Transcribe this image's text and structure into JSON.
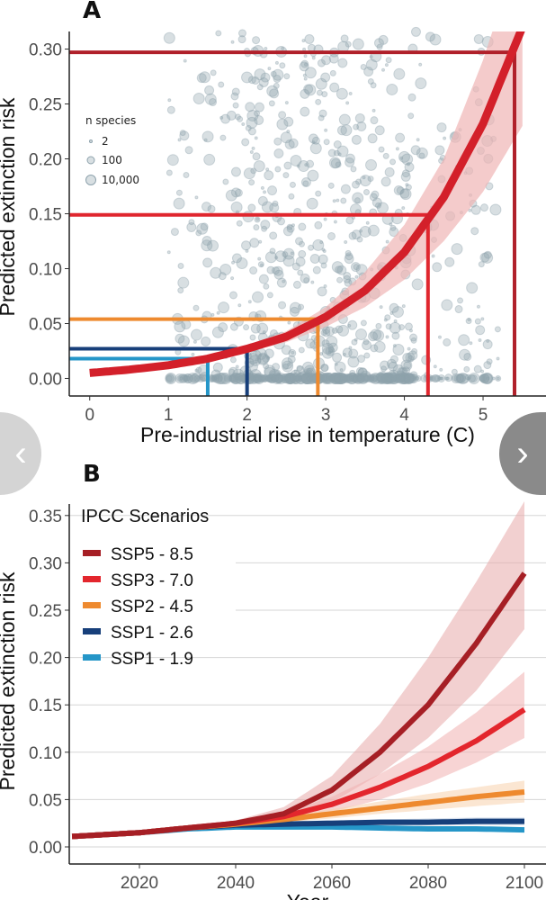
{
  "chart_data": [
    {
      "type": "scatter",
      "panel_label": "A",
      "xlabel": "Pre-industrial rise in temperature (C)",
      "ylabel": "Predicted extinction risk",
      "xlim": [
        -0.26,
        5.8
      ],
      "ylim": [
        -0.016,
        0.316
      ],
      "xticks": [
        "0",
        "1",
        "2",
        "3",
        "4",
        "5"
      ],
      "yticks": [
        "0.00",
        "0.05",
        "0.10",
        "0.15",
        "0.20",
        "0.25",
        "0.30"
      ],
      "grid": false,
      "legend": {
        "title": "n species",
        "entries": [
          "2",
          "100",
          "10,000"
        ],
        "placement": "top-left"
      },
      "points_color": "#8fa3ad",
      "fit_curve": {
        "color": "#d3202a",
        "band_color": "#f0b5b5",
        "x": [
          0,
          0.5,
          1,
          1.5,
          2,
          2.5,
          3,
          3.5,
          4,
          4.5,
          5,
          5.5
        ],
        "y": [
          0.005,
          0.008,
          0.012,
          0.018,
          0.027,
          0.038,
          0.056,
          0.08,
          0.115,
          0.165,
          0.232,
          0.32
        ],
        "lower": [
          0.004,
          0.007,
          0.011,
          0.016,
          0.024,
          0.033,
          0.047,
          0.065,
          0.09,
          0.125,
          0.17,
          0.23
        ],
        "upper": [
          0.006,
          0.009,
          0.013,
          0.02,
          0.03,
          0.043,
          0.065,
          0.097,
          0.14,
          0.2,
          0.29,
          0.4
        ]
      },
      "reference_lines": [
        {
          "temp": 5.4,
          "risk": 0.297,
          "color": "#b0202a"
        },
        {
          "temp": 4.3,
          "risk": 0.149,
          "color": "#e0262e"
        },
        {
          "temp": 2.9,
          "risk": 0.054,
          "color": "#ee8a2f"
        },
        {
          "temp": 2.0,
          "risk": 0.027,
          "color": "#173f7a"
        },
        {
          "temp": 1.5,
          "risk": 0.018,
          "color": "#2596c8"
        }
      ]
    },
    {
      "type": "line",
      "panel_label": "B",
      "xlabel": "Year",
      "ylabel": "Predicted extinction risk",
      "xlim": [
        2005.4,
        2104.5
      ],
      "ylim": [
        -0.018,
        0.365
      ],
      "xticks": [
        "2020",
        "2040",
        "2060",
        "2080",
        "2100"
      ],
      "yticks": [
        "0.00",
        "0.05",
        "0.10",
        "0.15",
        "0.20",
        "0.25",
        "0.30",
        "0.35"
      ],
      "grid": "horizontal",
      "legend": {
        "title": "IPCC Scenarios",
        "placement": "top-left"
      },
      "x": [
        2006,
        2020,
        2030,
        2040,
        2050,
        2060,
        2070,
        2080,
        2090,
        2100
      ],
      "series": [
        {
          "name": "SSP5 - 8.5",
          "color": "#a61f25",
          "band": "#e8a9a9",
          "values": [
            0.011,
            0.015,
            0.02,
            0.025,
            0.035,
            0.06,
            0.1,
            0.15,
            0.215,
            0.289
          ],
          "lower": [
            0.011,
            0.015,
            0.019,
            0.023,
            0.03,
            0.047,
            0.077,
            0.115,
            0.165,
            0.23
          ],
          "upper": [
            0.011,
            0.015,
            0.021,
            0.028,
            0.042,
            0.075,
            0.13,
            0.2,
            0.28,
            0.365
          ]
        },
        {
          "name": "SSP3 - 7.0",
          "color": "#e3262d",
          "band": "#f0b0b0",
          "values": [
            0.011,
            0.015,
            0.02,
            0.025,
            0.032,
            0.045,
            0.063,
            0.085,
            0.112,
            0.145
          ],
          "lower": [
            0.011,
            0.015,
            0.019,
            0.023,
            0.028,
            0.037,
            0.05,
            0.067,
            0.089,
            0.115
          ],
          "upper": [
            0.011,
            0.015,
            0.021,
            0.027,
            0.036,
            0.053,
            0.077,
            0.106,
            0.142,
            0.185
          ]
        },
        {
          "name": "SSP2 - 4.5",
          "color": "#ee8a2f",
          "band": "#f8d2ad",
          "values": [
            0.011,
            0.015,
            0.02,
            0.024,
            0.029,
            0.035,
            0.041,
            0.047,
            0.053,
            0.058
          ],
          "lower": [
            0.011,
            0.015,
            0.019,
            0.022,
            0.026,
            0.03,
            0.035,
            0.039,
            0.043,
            0.047
          ],
          "upper": [
            0.011,
            0.015,
            0.021,
            0.026,
            0.032,
            0.04,
            0.048,
            0.056,
            0.063,
            0.07
          ]
        },
        {
          "name": "SSP1 - 2.6",
          "color": "#173f7a",
          "band": "#b6c7df",
          "values": [
            0.011,
            0.015,
            0.02,
            0.023,
            0.024,
            0.025,
            0.026,
            0.026,
            0.027,
            0.027
          ],
          "lower": [
            0.011,
            0.015,
            0.019,
            0.021,
            0.022,
            0.022,
            0.023,
            0.023,
            0.023,
            0.023
          ],
          "upper": [
            0.011,
            0.015,
            0.021,
            0.025,
            0.027,
            0.028,
            0.029,
            0.03,
            0.031,
            0.031
          ]
        },
        {
          "name": "SSP1 - 1.9",
          "color": "#2596c8",
          "band": "#b5daeb",
          "values": [
            0.011,
            0.015,
            0.019,
            0.021,
            0.021,
            0.021,
            0.02,
            0.019,
            0.019,
            0.018
          ],
          "lower": [
            0.011,
            0.015,
            0.018,
            0.019,
            0.019,
            0.019,
            0.018,
            0.017,
            0.016,
            0.015
          ],
          "upper": [
            0.011,
            0.015,
            0.02,
            0.023,
            0.023,
            0.023,
            0.022,
            0.021,
            0.021,
            0.021
          ]
        }
      ]
    }
  ],
  "nav": {
    "prev_icon": "chevron-left-icon",
    "next_icon": "chevron-right-icon",
    "prev_glyph": "‹",
    "next_glyph": "›"
  }
}
